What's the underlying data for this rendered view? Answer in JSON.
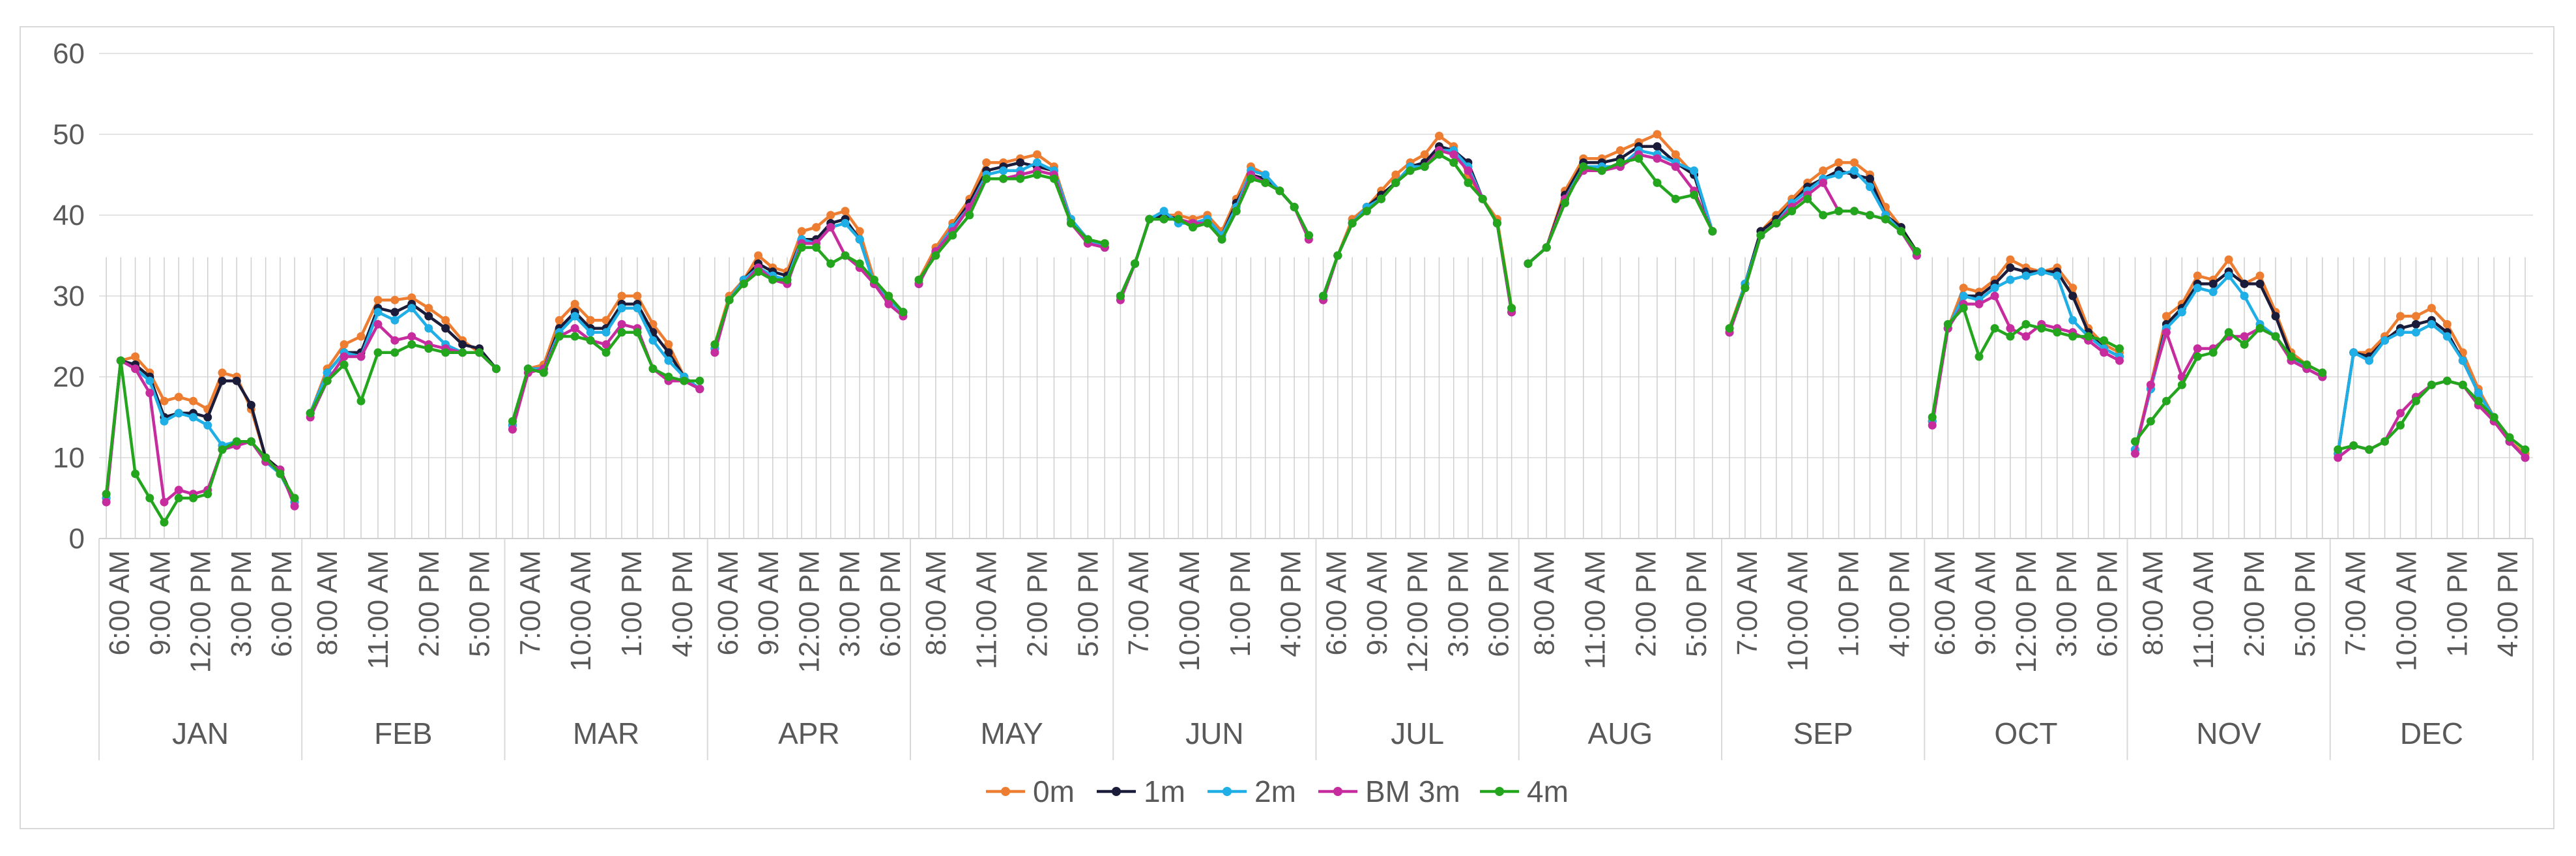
{
  "chart_data": {
    "type": "line",
    "title": "",
    "xlabel": "",
    "ylabel": "",
    "ylim": [
      0,
      60
    ],
    "yticks": [
      0,
      10,
      20,
      30,
      40,
      50,
      60
    ],
    "grid": true,
    "legend_position": "bottom",
    "months": [
      {
        "name": "JAN",
        "hour_labels": [
          "6:00 AM",
          "9:00 AM",
          "12:00 PM",
          "3:00 PM",
          "6:00 PM"
        ]
      },
      {
        "name": "FEB",
        "hour_labels": [
          "8:00 AM",
          "11:00 AM",
          "2:00 PM",
          "5:00 PM"
        ]
      },
      {
        "name": "MAR",
        "hour_labels": [
          "7:00 AM",
          "10:00 AM",
          "1:00 PM",
          "4:00 PM"
        ]
      },
      {
        "name": "APR",
        "hour_labels": [
          "6:00 AM",
          "9:00 AM",
          "12:00 PM",
          "3:00 PM",
          "6:00 PM"
        ]
      },
      {
        "name": "MAY",
        "hour_labels": [
          "8:00 AM",
          "11:00 AM",
          "2:00 PM",
          "5:00 PM"
        ]
      },
      {
        "name": "JUN",
        "hour_labels": [
          "7:00 AM",
          "10:00 AM",
          "1:00 PM",
          "4:00 PM"
        ]
      },
      {
        "name": "JUL",
        "hour_labels": [
          "6:00 AM",
          "9:00 AM",
          "12:00 PM",
          "3:00 PM",
          "6:00 PM"
        ]
      },
      {
        "name": "AUG",
        "hour_labels": [
          "8:00 AM",
          "11:00 AM",
          "2:00 PM",
          "5:00 PM"
        ]
      },
      {
        "name": "SEP",
        "hour_labels": [
          "7:00 AM",
          "10:00 AM",
          "1:00 PM",
          "4:00 PM"
        ]
      },
      {
        "name": "OCT",
        "hour_labels": [
          "6:00 AM",
          "9:00 AM",
          "12:00 PM",
          "3:00 PM",
          "6:00 PM"
        ]
      },
      {
        "name": "NOV",
        "hour_labels": [
          "8:00 AM",
          "11:00 AM",
          "2:00 PM",
          "5:00 PM"
        ]
      },
      {
        "name": "DEC",
        "hour_labels": [
          "7:00 AM",
          "10:00 AM",
          "1:00 PM",
          "4:00 PM"
        ]
      }
    ],
    "series": [
      {
        "name": "0m",
        "color": "#ED7D31",
        "values": [
          [
            5.5,
            22,
            22.5,
            20.5,
            17,
            17.5,
            17,
            16,
            20.5,
            20,
            16,
            10,
            8.5,
            4.5
          ],
          [
            15.5,
            21,
            24,
            25,
            29.5,
            29.5,
            29.8,
            28.5,
            27,
            24.5,
            23,
            21
          ],
          [
            14,
            21,
            21.5,
            27,
            29,
            27,
            27,
            30,
            30,
            26.5,
            24,
            20,
            18.5
          ],
          [
            24,
            30,
            32,
            35,
            33.5,
            33,
            38,
            38.5,
            40,
            40.5,
            38,
            32,
            30,
            28
          ],
          [
            32,
            36,
            39,
            42,
            46.5,
            46.5,
            47,
            47.5,
            46,
            39.5,
            37,
            36.5
          ],
          [
            30,
            34,
            39.5,
            40,
            40,
            39.5,
            40,
            38,
            42,
            46,
            45,
            43,
            41,
            37.5
          ],
          [
            30,
            35,
            39.5,
            41,
            43,
            45,
            46.5,
            47.5,
            49.8,
            48.5,
            45,
            42,
            39.5,
            28.5
          ],
          [
            34,
            36,
            43,
            47,
            47,
            48,
            49,
            50,
            47.5,
            45,
            38
          ],
          [
            26,
            31.5,
            38,
            40,
            42,
            44,
            45.5,
            46.5,
            46.5,
            45,
            41,
            38.5,
            35.5
          ],
          [
            14.5,
            26,
            31,
            30.5,
            32,
            34.5,
            33.5,
            33,
            33.5,
            31,
            26,
            24,
            23
          ],
          [
            11,
            19,
            27.5,
            29,
            32.5,
            32,
            34.5,
            31.5,
            32.5,
            28,
            23,
            21.5,
            20.5
          ],
          [
            10.5,
            23,
            23,
            25,
            27.5,
            27.5,
            28.5,
            26.5,
            23,
            18.5,
            15,
            12,
            10.5
          ]
        ]
      },
      {
        "name": "1m",
        "color": "#1B1B3A",
        "values": [
          [
            5,
            22,
            21.5,
            20,
            15,
            15.5,
            15.5,
            15,
            19.5,
            19.5,
            16.5,
            10,
            8.5,
            4.5
          ],
          [
            15.5,
            20.5,
            23,
            23,
            28.5,
            28,
            29,
            27.5,
            26,
            24,
            23.5,
            21
          ],
          [
            14,
            21,
            21,
            26,
            28,
            26,
            26,
            29,
            29,
            25.5,
            23,
            20,
            18.5
          ],
          [
            23.5,
            29.5,
            32,
            34,
            33,
            32.5,
            37,
            37,
            39,
            39.5,
            37,
            31.5,
            29.5,
            28
          ],
          [
            31.5,
            35.5,
            38.5,
            41.5,
            45.5,
            46,
            46.5,
            46,
            45.5,
            39.5,
            37,
            36
          ],
          [
            30,
            34,
            39.5,
            40,
            39.5,
            39,
            39.5,
            37.5,
            41.5,
            45,
            44.5,
            43,
            41,
            37.5
          ],
          [
            30,
            35,
            39,
            41,
            42.5,
            44,
            46,
            46.5,
            48.5,
            48,
            46.5,
            42,
            39,
            28
          ],
          [
            34,
            36,
            42.5,
            46.5,
            46.5,
            47,
            48.5,
            48.5,
            46.5,
            45,
            38
          ],
          [
            25.5,
            31.5,
            38,
            39.5,
            41.5,
            43.5,
            44.5,
            45.5,
            45,
            44.5,
            40,
            38.5,
            35.5
          ],
          [
            14.5,
            26,
            30,
            30,
            31.5,
            33.5,
            33,
            33,
            33,
            30,
            25.5,
            23.5,
            22.5
          ],
          [
            11,
            18.5,
            26.5,
            28.5,
            31.5,
            31.5,
            33,
            31.5,
            31.5,
            27.5,
            22.5,
            21,
            20
          ],
          [
            10.5,
            23,
            22.5,
            24.5,
            26,
            26.5,
            27,
            25.5,
            22,
            18,
            15,
            12,
            10
          ]
        ]
      },
      {
        "name": "2m",
        "color": "#1FAEE6",
        "values": [
          [
            5,
            22,
            21,
            19.5,
            14.5,
            15.5,
            15,
            14,
            11.5,
            12,
            12,
            9.5,
            8,
            4.5
          ],
          [
            15.5,
            20.5,
            23,
            22.5,
            28,
            27,
            28.5,
            26,
            24,
            23,
            23,
            21
          ],
          [
            14,
            21,
            21,
            25.5,
            27.5,
            25.5,
            25.5,
            28.5,
            28.5,
            24.5,
            22,
            20,
            18.5
          ],
          [
            23.5,
            29.5,
            32,
            33.5,
            32.5,
            32,
            37,
            36.5,
            38.5,
            39,
            37,
            31.5,
            29.5,
            28
          ],
          [
            31.5,
            35.5,
            38.5,
            41,
            45,
            45.5,
            45.5,
            46.5,
            45.5,
            39.5,
            37,
            36
          ],
          [
            30,
            34,
            39.5,
            40.5,
            39,
            39,
            39.5,
            37.5,
            41,
            45.5,
            45,
            43,
            41,
            37.5
          ],
          [
            30,
            35,
            39,
            41,
            42,
            44,
            46,
            46,
            48,
            48,
            46,
            42,
            39,
            28
          ],
          [
            34,
            36,
            42,
            46,
            46,
            46,
            48,
            47.5,
            46.5,
            45.5,
            38
          ],
          [
            25.5,
            31.5,
            37.5,
            39,
            41.5,
            43,
            44.5,
            45,
            45.5,
            43.5,
            40,
            38,
            35
          ],
          [
            14.5,
            26,
            30,
            29.5,
            31,
            32,
            32.5,
            33,
            32.5,
            27,
            25,
            23.5,
            22.5
          ],
          [
            11,
            18.5,
            26,
            28,
            31,
            30.5,
            32.5,
            30,
            26.5,
            25,
            22.5,
            21,
            20
          ],
          [
            10.5,
            23,
            22,
            24.5,
            25.5,
            25.5,
            26.5,
            25,
            22,
            18,
            15,
            12,
            10
          ]
        ]
      },
      {
        "name": "BM 3m",
        "color": "#C72C9E",
        "values": [
          [
            4.5,
            22,
            21,
            18,
            4.5,
            6,
            5.5,
            6,
            11,
            11.5,
            12,
            9.5,
            8.5,
            4
          ],
          [
            15,
            19.5,
            22.5,
            22.5,
            26.5,
            24.5,
            25,
            24,
            23.5,
            23,
            23,
            21
          ],
          [
            13.5,
            20.5,
            21,
            25,
            26,
            24.5,
            24,
            26.5,
            26,
            21,
            19.5,
            19.5,
            18.5
          ],
          [
            23,
            29.5,
            31.5,
            33.5,
            32,
            31.5,
            36.5,
            36.5,
            38.5,
            35,
            33.5,
            31.5,
            29,
            27.5
          ],
          [
            31.5,
            35.5,
            38,
            41,
            44.5,
            44.5,
            45,
            45.5,
            45,
            39,
            36.5,
            36
          ],
          [
            29.5,
            34,
            39.5,
            39.5,
            39.5,
            39,
            39,
            37,
            40.5,
            45,
            44,
            43,
            41,
            37
          ],
          [
            29.5,
            35,
            39,
            40.5,
            42,
            44,
            45.5,
            46,
            48,
            47.5,
            45.5,
            42,
            39,
            28
          ],
          [
            34,
            36,
            42,
            45.5,
            45.5,
            46,
            47.5,
            47,
            46,
            43,
            38
          ],
          [
            25.5,
            31,
            37.5,
            39,
            41,
            42.5,
            44,
            40.5,
            40.5,
            40,
            39.5,
            38,
            35
          ],
          [
            14,
            26,
            29,
            29,
            30,
            26,
            25,
            26.5,
            26,
            25.5,
            24.5,
            23,
            22
          ],
          [
            10.5,
            19,
            25.5,
            20,
            23.5,
            23.5,
            25,
            25,
            26,
            25,
            22,
            21,
            20
          ],
          [
            10,
            11.5,
            11,
            12,
            15.5,
            17.5,
            19,
            19.5,
            19,
            16.5,
            14.5,
            12,
            10
          ]
        ]
      },
      {
        "name": "4m",
        "color": "#23A51D",
        "values": [
          [
            5.5,
            22,
            8,
            5,
            2,
            5,
            5,
            5.5,
            11,
            12,
            12,
            10,
            8,
            5
          ],
          [
            15.5,
            19.5,
            21.5,
            17,
            23,
            23,
            24,
            23.5,
            23,
            23,
            23,
            21
          ],
          [
            14.5,
            21,
            20.5,
            25,
            25,
            24.5,
            23,
            25.5,
            25.5,
            21,
            20,
            19.5,
            19.5
          ],
          [
            24,
            29.5,
            31.5,
            33,
            32,
            32,
            36,
            36,
            34,
            35,
            34,
            32,
            30,
            28
          ],
          [
            32,
            35,
            37.5,
            40,
            44.5,
            44.5,
            44.5,
            45,
            44.5,
            39,
            37,
            36.5
          ],
          [
            30,
            34,
            39.5,
            39.5,
            39.5,
            38.5,
            39,
            37,
            40.5,
            44.5,
            44,
            43,
            41,
            37.5
          ],
          [
            30,
            35,
            39,
            40.5,
            42,
            44,
            45.5,
            46,
            47.5,
            46.5,
            44,
            42,
            39,
            28.5
          ],
          [
            34,
            36,
            41.5,
            46,
            45.5,
            46.5,
            47,
            44,
            42,
            42.5,
            38
          ],
          [
            26,
            31,
            37.5,
            39,
            40.5,
            42,
            40,
            40.5,
            40.5,
            40,
            39.5,
            38,
            35.5
          ],
          [
            15,
            26.5,
            28.5,
            22.5,
            26,
            25,
            26.5,
            26,
            25.5,
            25,
            25,
            24.5,
            23.5
          ],
          [
            12,
            14.5,
            17,
            19,
            22.5,
            23,
            25.5,
            24,
            26,
            25,
            22.5,
            21.5,
            20.5
          ],
          [
            11,
            11.5,
            11,
            12,
            14,
            17,
            19,
            19.5,
            19,
            17,
            15,
            12.5,
            11
          ]
        ]
      }
    ]
  }
}
